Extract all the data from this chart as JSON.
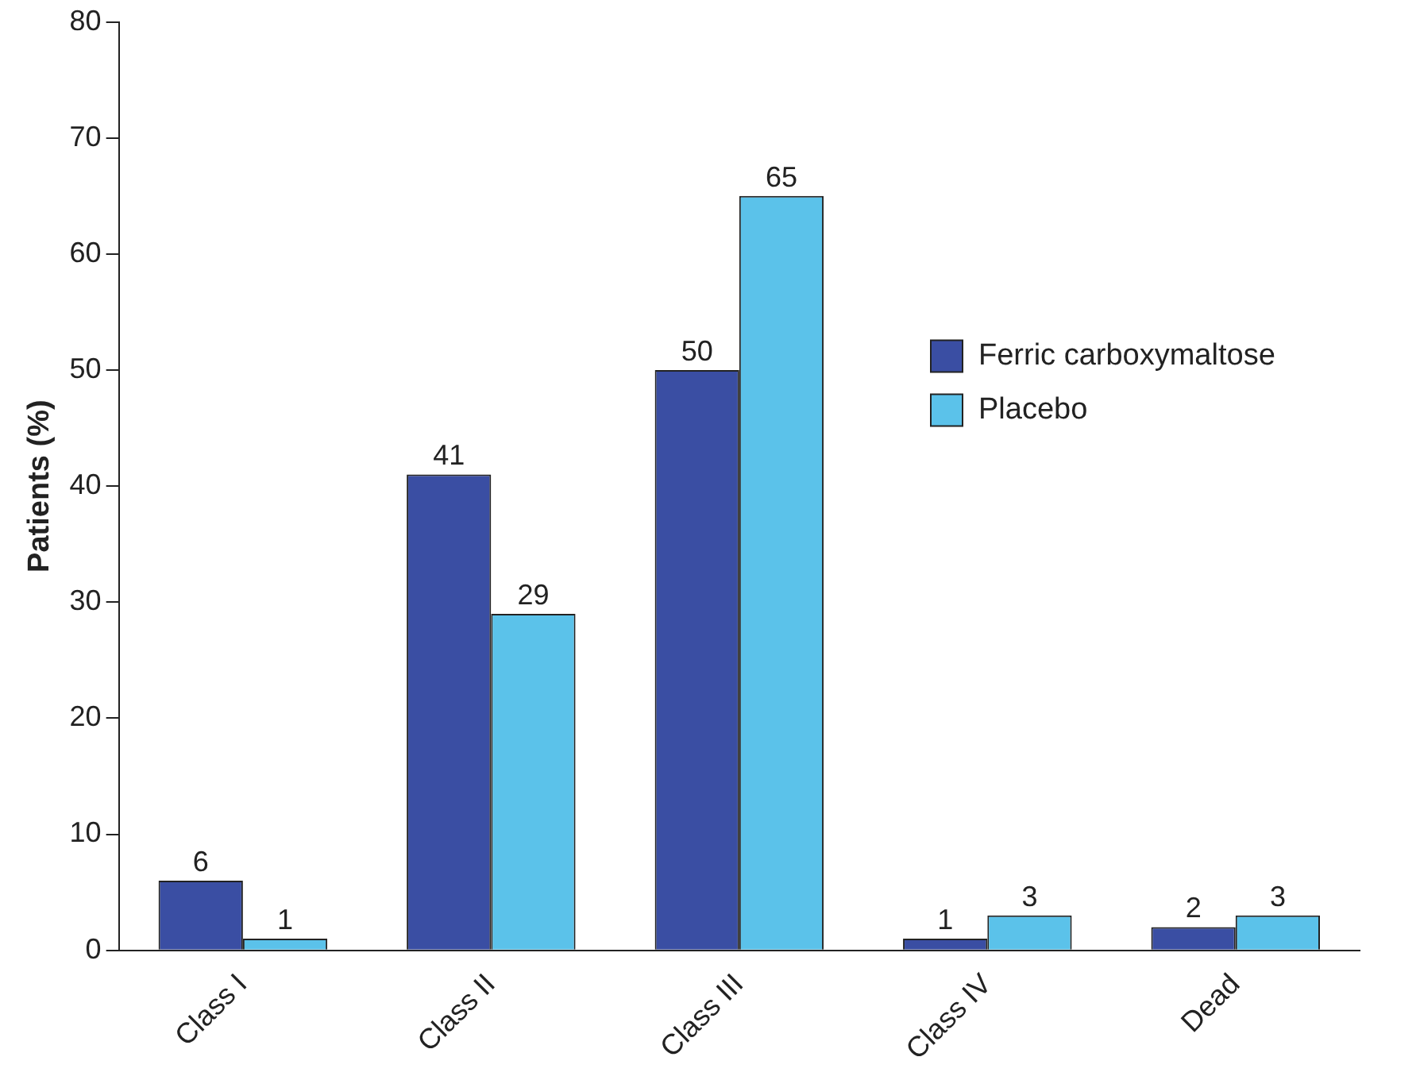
{
  "chart_data": {
    "type": "bar",
    "ylabel": "Patients (%)",
    "categories": [
      "Class I",
      "Class II",
      "Class III",
      "Class IV",
      "Dead"
    ],
    "series": [
      {
        "name": "Ferric carboxymaltose",
        "color": "#3a4ea3",
        "values": [
          6,
          41,
          50,
          1,
          2
        ]
      },
      {
        "name": "Placebo",
        "color": "#5bc2ea",
        "values": [
          1,
          29,
          65,
          3,
          3
        ]
      }
    ],
    "ylim": [
      0,
      80
    ],
    "yticks": [
      0,
      10,
      20,
      30,
      40,
      50,
      60,
      70,
      80
    ],
    "grid": false,
    "legend": "right",
    "data_labels": true
  }
}
